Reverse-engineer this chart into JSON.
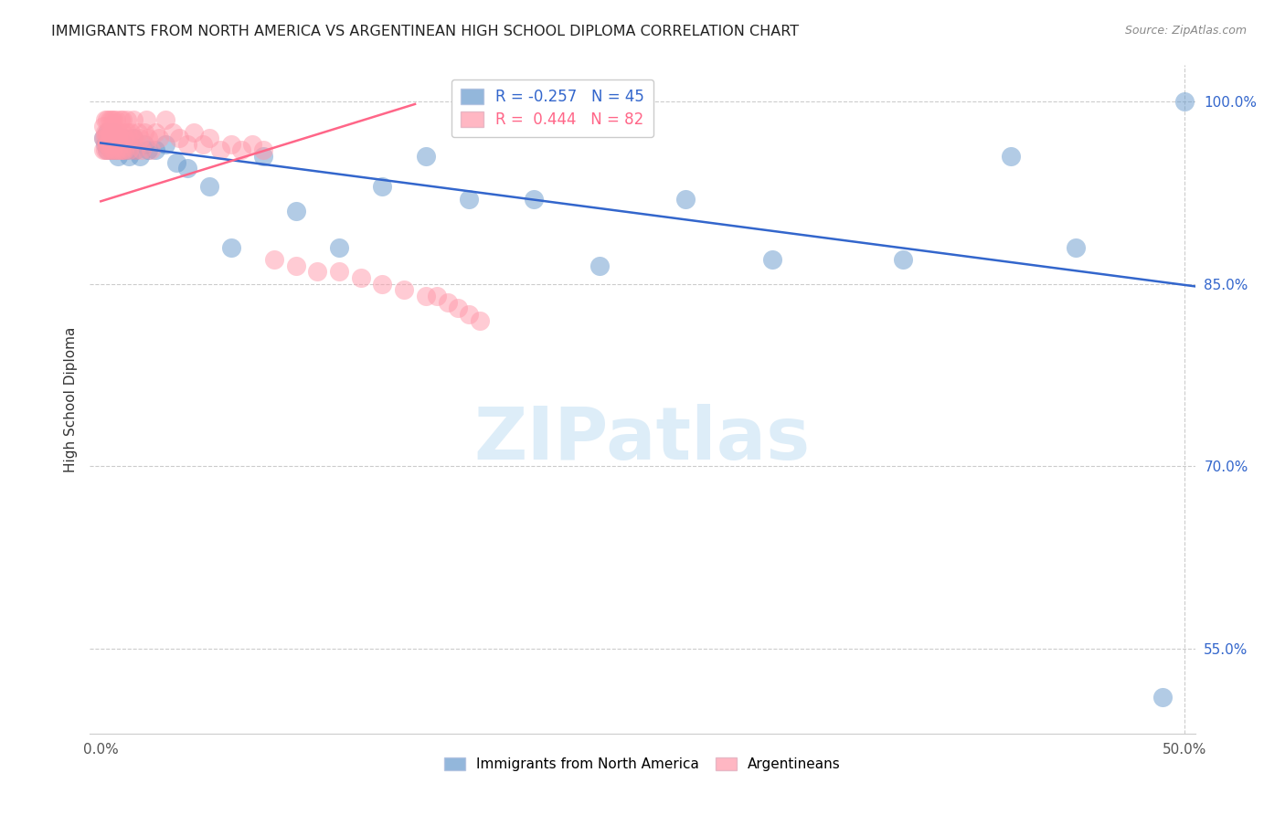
{
  "title": "IMMIGRANTS FROM NORTH AMERICA VS ARGENTINEAN HIGH SCHOOL DIPLOMA CORRELATION CHART",
  "source": "Source: ZipAtlas.com",
  "ylabel": "High School Diploma",
  "xlim": [
    -0.005,
    0.505
  ],
  "ylim": [
    0.48,
    1.03
  ],
  "xtick_positions": [
    0.0,
    0.1,
    0.2,
    0.3,
    0.4,
    0.5
  ],
  "xticklabels": [
    "0.0%",
    "",
    "",
    "",
    "",
    "50.0%"
  ],
  "ytick_right_pos": [
    0.55,
    0.7,
    0.85,
    1.0
  ],
  "ytick_right_labels": [
    "55.0%",
    "70.0%",
    "85.0%",
    "100.0%"
  ],
  "blue_R": -0.257,
  "blue_N": 45,
  "pink_R": 0.444,
  "pink_N": 82,
  "blue_color": "#6699CC",
  "pink_color": "#FF99AA",
  "blue_line_color": "#3366CC",
  "pink_line_color": "#FF6688",
  "watermark_text": "ZIPatlas",
  "legend_label_blue": "Immigrants from North America",
  "legend_label_pink": "Argentineans",
  "blue_line_x": [
    0.0,
    0.505
  ],
  "blue_line_y": [
    0.966,
    0.848
  ],
  "pink_line_x": [
    0.0,
    0.145
  ],
  "pink_line_y": [
    0.918,
    0.998
  ],
  "blue_x": [
    0.001,
    0.002,
    0.003,
    0.003,
    0.004,
    0.005,
    0.005,
    0.006,
    0.006,
    0.007,
    0.007,
    0.008,
    0.008,
    0.009,
    0.01,
    0.01,
    0.011,
    0.012,
    0.013,
    0.015,
    0.016,
    0.018,
    0.02,
    0.022,
    0.025,
    0.03,
    0.035,
    0.04,
    0.05,
    0.06,
    0.075,
    0.09,
    0.11,
    0.13,
    0.15,
    0.17,
    0.2,
    0.23,
    0.27,
    0.31,
    0.37,
    0.42,
    0.45,
    0.49,
    0.5
  ],
  "blue_y": [
    0.97,
    0.965,
    0.96,
    0.975,
    0.965,
    0.97,
    0.96,
    0.965,
    0.975,
    0.96,
    0.97,
    0.965,
    0.955,
    0.968,
    0.965,
    0.97,
    0.965,
    0.96,
    0.955,
    0.97,
    0.96,
    0.955,
    0.965,
    0.96,
    0.96,
    0.965,
    0.95,
    0.945,
    0.93,
    0.88,
    0.955,
    0.91,
    0.88,
    0.93,
    0.955,
    0.92,
    0.92,
    0.865,
    0.92,
    0.87,
    0.87,
    0.955,
    0.88,
    0.51,
    1.0
  ],
  "pink_x": [
    0.001,
    0.001,
    0.001,
    0.002,
    0.002,
    0.002,
    0.002,
    0.003,
    0.003,
    0.003,
    0.003,
    0.003,
    0.004,
    0.004,
    0.004,
    0.004,
    0.005,
    0.005,
    0.005,
    0.005,
    0.005,
    0.006,
    0.006,
    0.006,
    0.006,
    0.007,
    0.007,
    0.007,
    0.007,
    0.008,
    0.008,
    0.008,
    0.009,
    0.009,
    0.009,
    0.01,
    0.01,
    0.01,
    0.011,
    0.011,
    0.012,
    0.012,
    0.013,
    0.013,
    0.014,
    0.015,
    0.015,
    0.016,
    0.017,
    0.018,
    0.019,
    0.02,
    0.021,
    0.022,
    0.023,
    0.025,
    0.027,
    0.03,
    0.033,
    0.036,
    0.04,
    0.043,
    0.047,
    0.05,
    0.055,
    0.06,
    0.065,
    0.07,
    0.075,
    0.08,
    0.09,
    0.1,
    0.11,
    0.12,
    0.13,
    0.14,
    0.15,
    0.155,
    0.16,
    0.165,
    0.17,
    0.175
  ],
  "pink_y": [
    0.97,
    0.96,
    0.98,
    0.975,
    0.96,
    0.97,
    0.985,
    0.965,
    0.975,
    0.96,
    0.97,
    0.985,
    0.97,
    0.96,
    0.975,
    0.985,
    0.97,
    0.96,
    0.975,
    0.985,
    0.965,
    0.97,
    0.96,
    0.975,
    0.985,
    0.97,
    0.96,
    0.975,
    0.985,
    0.97,
    0.96,
    0.975,
    0.97,
    0.985,
    0.96,
    0.975,
    0.96,
    0.985,
    0.97,
    0.96,
    0.975,
    0.985,
    0.97,
    0.96,
    0.975,
    0.97,
    0.985,
    0.96,
    0.975,
    0.97,
    0.96,
    0.975,
    0.985,
    0.97,
    0.96,
    0.975,
    0.97,
    0.985,
    0.975,
    0.97,
    0.965,
    0.975,
    0.965,
    0.97,
    0.96,
    0.965,
    0.96,
    0.965,
    0.96,
    0.87,
    0.865,
    0.86,
    0.86,
    0.855,
    0.85,
    0.845,
    0.84,
    0.84,
    0.835,
    0.83,
    0.825,
    0.82
  ]
}
